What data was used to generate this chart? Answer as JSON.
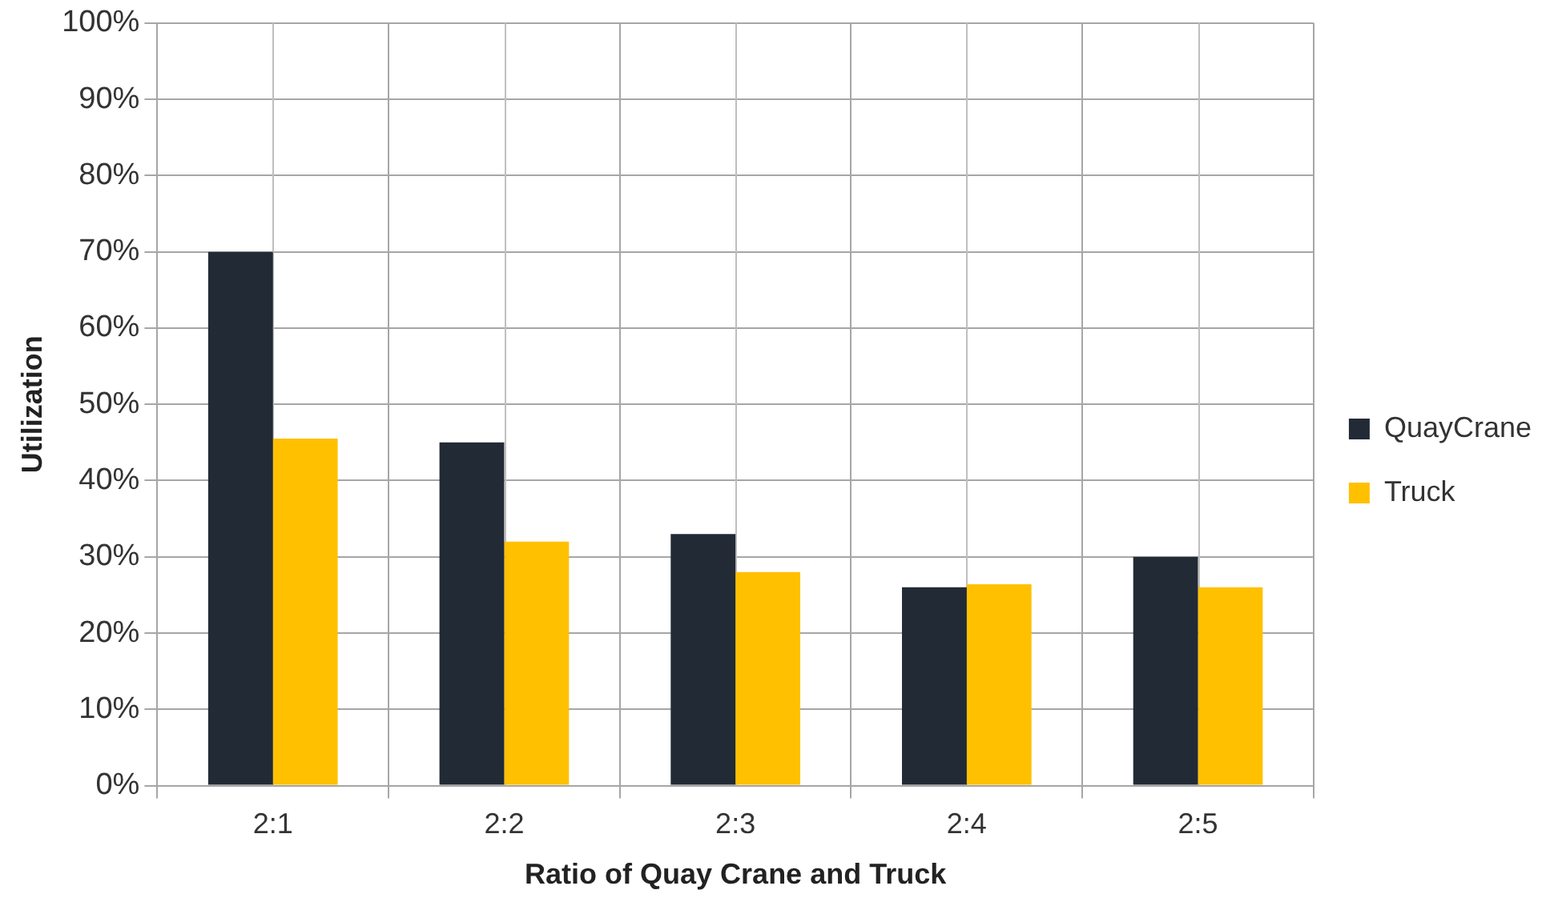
{
  "chart_data": {
    "type": "bar",
    "xlabel": "Ratio of Quay Crane and Truck",
    "ylabel": "Utilization",
    "categories": [
      "2:1",
      "2:2",
      "2:3",
      "2:4",
      "2:5"
    ],
    "series": [
      {
        "name": "QuayCrane",
        "color": "#222a35",
        "values": [
          70,
          45,
          33,
          26,
          30
        ]
      },
      {
        "name": "Truck",
        "color": "#ffc000",
        "values": [
          45.5,
          32,
          28,
          26.4,
          26
        ]
      }
    ],
    "ylim": [
      0,
      100
    ],
    "yticks": [
      {
        "value": 0,
        "label": "0%"
      },
      {
        "value": 10,
        "label": "10%"
      },
      {
        "value": 20,
        "label": "20%"
      },
      {
        "value": 30,
        "label": "30%"
      },
      {
        "value": 40,
        "label": "40%"
      },
      {
        "value": 50,
        "label": "50%"
      },
      {
        "value": 60,
        "label": "60%"
      },
      {
        "value": 70,
        "label": "70%"
      },
      {
        "value": 80,
        "label": "80%"
      },
      {
        "value": 90,
        "label": "90%"
      },
      {
        "value": 100,
        "label": "100%"
      }
    ],
    "grid": true,
    "legend": "right"
  }
}
